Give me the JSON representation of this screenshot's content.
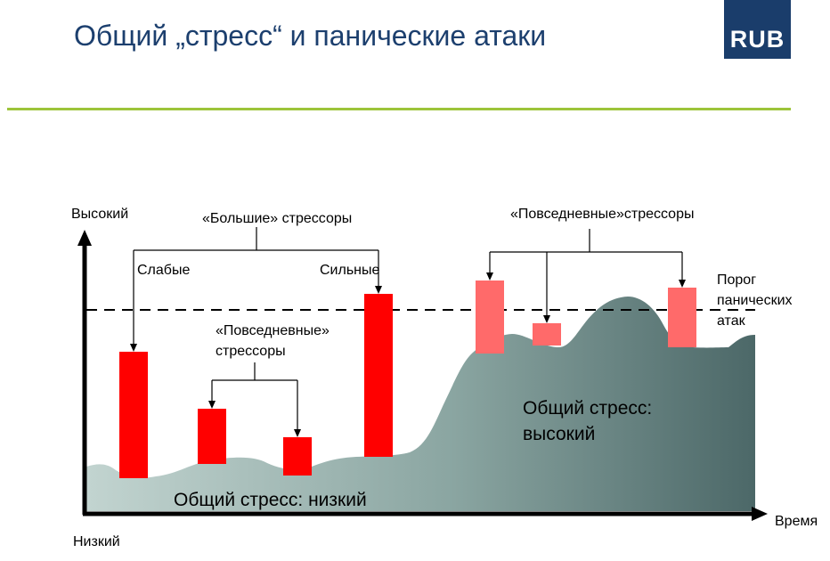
{
  "slide": {
    "title": "Общий „стресс“ и панические атаки",
    "logo": {
      "bold": "RU",
      "light": "B"
    }
  },
  "axes": {
    "y_high": "Высокий",
    "y_low": "Низкий",
    "x_label": "Время"
  },
  "labels": {
    "big_stressors": "«Большие» стрессоры",
    "weak": "Слабые",
    "strong": "Сильные",
    "daily_low_line1": "«Повседневные»",
    "daily_low_line2": "стрессоры",
    "daily_high": "«Повседневные»стрессоры",
    "threshold_line1": "Порог",
    "threshold_line2": "панических",
    "threshold_line3": "атак",
    "stress_low": "Общий стресс: низкий",
    "stress_high_line1": "Общий стресс:",
    "stress_high_line2": "высокий"
  },
  "colors": {
    "title": "#1c3f6e",
    "logo_bg": "#1a3d6b",
    "rule": "#9dc43a",
    "bar_strong": "#ff0000",
    "bar_light": "#ff6a6a",
    "stress_fill_start": "#c2d4d0",
    "stress_fill_end": "#4c6868"
  }
}
